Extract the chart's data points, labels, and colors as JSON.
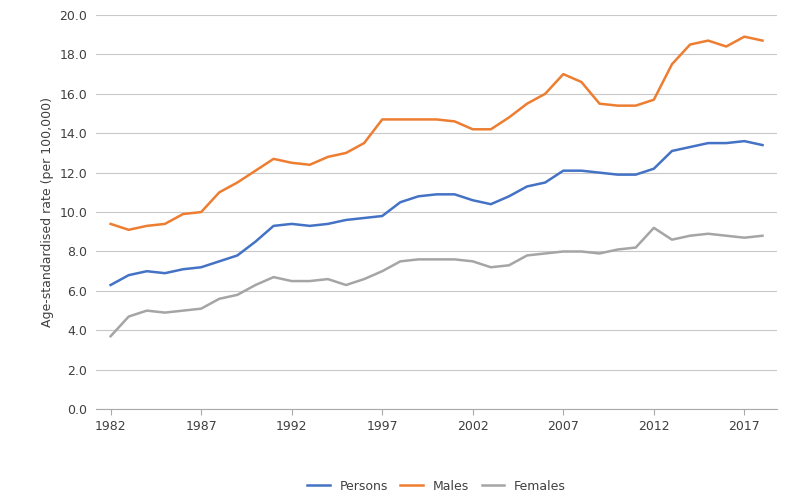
{
  "years": [
    1982,
    1983,
    1984,
    1985,
    1986,
    1987,
    1988,
    1989,
    1990,
    1991,
    1992,
    1993,
    1994,
    1995,
    1996,
    1997,
    1998,
    1999,
    2000,
    2001,
    2002,
    2003,
    2004,
    2005,
    2006,
    2007,
    2008,
    2009,
    2010,
    2011,
    2012,
    2013,
    2014,
    2015,
    2016,
    2017,
    2018
  ],
  "persons": [
    6.3,
    6.8,
    7.0,
    6.9,
    7.1,
    7.2,
    7.5,
    7.8,
    8.5,
    9.3,
    9.4,
    9.3,
    9.4,
    9.6,
    9.7,
    9.8,
    10.5,
    10.8,
    10.9,
    10.9,
    10.6,
    10.4,
    10.8,
    11.3,
    11.5,
    12.1,
    12.1,
    12.0,
    11.9,
    11.9,
    12.2,
    13.1,
    13.3,
    13.5,
    13.5,
    13.6,
    13.4
  ],
  "males": [
    9.4,
    9.1,
    9.3,
    9.4,
    9.9,
    10.0,
    11.0,
    11.5,
    12.1,
    12.7,
    12.5,
    12.4,
    12.8,
    13.0,
    13.5,
    14.7,
    14.7,
    14.7,
    14.7,
    14.6,
    14.2,
    14.2,
    14.8,
    15.5,
    16.0,
    17.0,
    16.6,
    15.5,
    15.4,
    15.4,
    15.7,
    17.5,
    18.5,
    18.7,
    18.4,
    18.9,
    18.7
  ],
  "females": [
    3.7,
    4.7,
    5.0,
    4.9,
    5.0,
    5.1,
    5.6,
    5.8,
    6.3,
    6.7,
    6.5,
    6.5,
    6.6,
    6.3,
    6.6,
    7.0,
    7.5,
    7.6,
    7.6,
    7.6,
    7.5,
    7.2,
    7.3,
    7.8,
    7.9,
    8.0,
    8.0,
    7.9,
    8.1,
    8.2,
    9.2,
    8.6,
    8.8,
    8.9,
    8.8,
    8.7,
    8.8
  ],
  "persons_color": "#4472C4",
  "males_color": "#ED7D31",
  "females_color": "#A5A5A5",
  "ylabel": "Age-standardised rate (per 100,000)",
  "ylim": [
    0.0,
    20.0
  ],
  "yticks": [
    0.0,
    2.0,
    4.0,
    6.0,
    8.0,
    10.0,
    12.0,
    14.0,
    16.0,
    18.0,
    20.0
  ],
  "xticks": [
    1982,
    1987,
    1992,
    1997,
    2002,
    2007,
    2012,
    2017
  ],
  "line_width": 1.8,
  "legend_labels": [
    "Persons",
    "Males",
    "Females"
  ],
  "background_color": "#ffffff",
  "grid_color": "#c8c8c8"
}
